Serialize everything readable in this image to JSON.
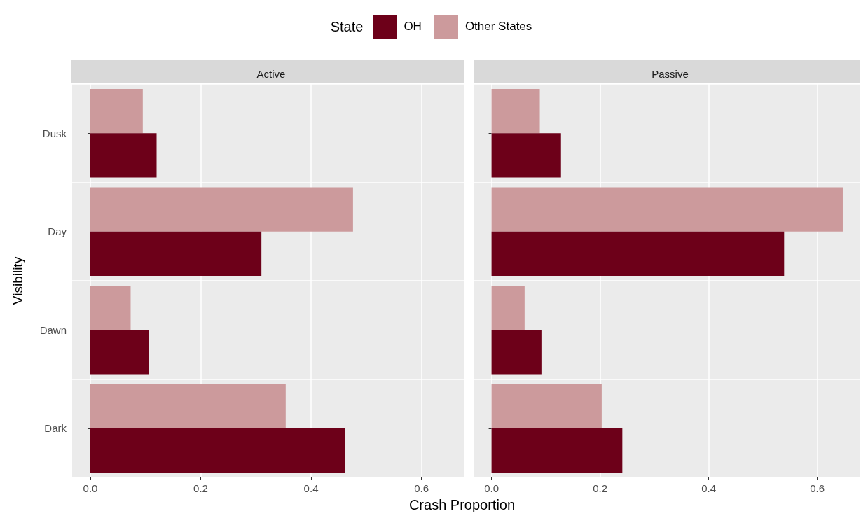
{
  "chart_data": [
    {
      "type": "bar",
      "orientation": "horizontal",
      "title": "Active",
      "xlabel": "Crash Proportion",
      "ylabel": "Visibility",
      "legend_title": "State",
      "legend": "top",
      "grid": true,
      "categories": [
        "Dusk",
        "Day",
        "Dawn",
        "Dark"
      ],
      "series": [
        {
          "name": "OH",
          "color": "#6d0019",
          "values": [
            0.12,
            0.31,
            0.106,
            0.462
          ]
        },
        {
          "name": "Other States",
          "color": "#cc9a9c",
          "values": [
            0.095,
            0.476,
            0.073,
            0.354
          ]
        }
      ],
      "xlim": [
        -0.033,
        0.678
      ],
      "xticks": [
        {
          "value": 0,
          "label": "0.0"
        },
        {
          "value": 0.2,
          "label": "0.2"
        },
        {
          "value": 0.4,
          "label": "0.4"
        },
        {
          "value": 0.6,
          "label": "0.6"
        }
      ]
    },
    {
      "type": "bar",
      "orientation": "horizontal",
      "title": "Passive",
      "grid": true,
      "tick_labels": "x",
      "categories": [
        null,
        null,
        null,
        null
      ],
      "series": [
        {
          "color": "#6d0019",
          "values": [
            0.128,
            0.539,
            0.092,
            0.241
          ]
        },
        {
          "color": "#cc9a9c",
          "values": [
            0.089,
            0.647,
            0.061,
            0.203
          ]
        }
      ],
      "xlim": [
        -0.033,
        0.678
      ],
      "xticks": [
        {
          "value": 0,
          "label": "0.0"
        },
        {
          "value": 0.2,
          "label": "0.2"
        },
        {
          "value": 0.4,
          "label": "0.4"
        },
        {
          "value": 0.6,
          "label": "0.6"
        }
      ]
    }
  ]
}
